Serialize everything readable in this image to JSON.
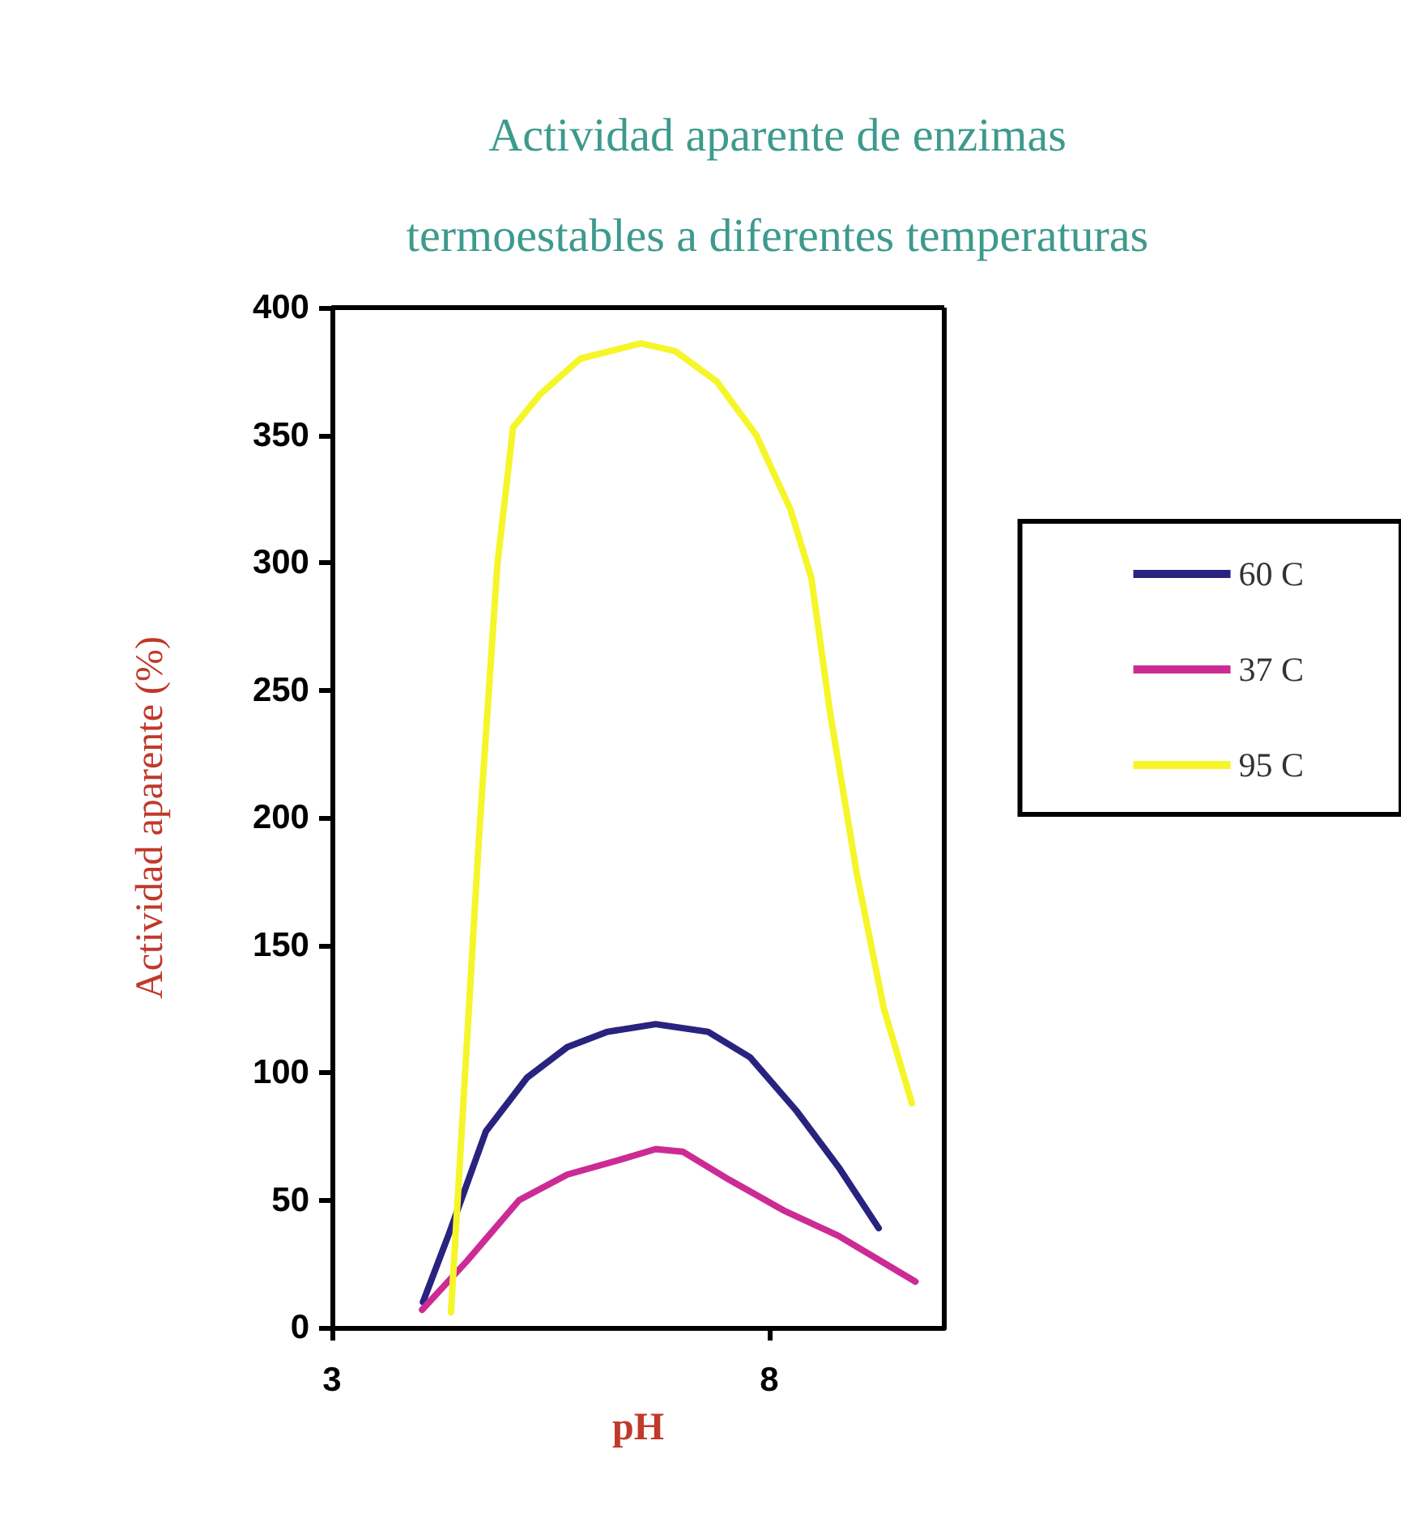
{
  "chart_data": {
    "type": "line",
    "title": "Actividad aparente de enzimas\ntermoestables a diferentes temperaturas",
    "xlabel": "pH",
    "ylabel": "Actividad aparente (%)",
    "xlim": [
      3,
      10
    ],
    "xticks": [
      3,
      8
    ],
    "ylim": [
      0,
      400
    ],
    "yticks": [
      0,
      50,
      100,
      150,
      200,
      250,
      300,
      350,
      400
    ],
    "grid": false,
    "legend": "right",
    "marker": "none",
    "line_style": "solid",
    "series": [
      {
        "name": "60 C",
        "color": "#28237f",
        "x": [
          4.04,
          4.34,
          4.76,
          5.23,
          5.69,
          6.15,
          6.7,
          7.3,
          7.78,
          8.31,
          8.79,
          9.25
        ],
        "values": [
          10,
          37,
          77,
          98,
          110,
          116,
          119,
          116,
          106,
          85,
          63,
          39
        ]
      },
      {
        "name": "37 C",
        "color": "#cc2b94",
        "x": [
          4.03,
          4.54,
          5.14,
          5.69,
          6.31,
          6.7,
          7.01,
          7.54,
          8.16,
          8.79,
          9.67
        ],
        "values": [
          7,
          26,
          50,
          60,
          66,
          70,
          69,
          58,
          46,
          36,
          18
        ]
      },
      {
        "name": "95 C",
        "color": "#f5f52a",
        "x": [
          4.36,
          4.45,
          4.68,
          4.89,
          5.07,
          5.38,
          5.84,
          6.53,
          6.92,
          7.4,
          7.85,
          8.24,
          8.48,
          8.7,
          9.0,
          9.31,
          9.63
        ],
        "values": [
          6,
          58,
          192,
          299,
          353,
          366,
          380,
          386,
          383,
          371,
          350,
          321,
          294,
          240,
          178,
          125,
          88
        ]
      }
    ]
  }
}
